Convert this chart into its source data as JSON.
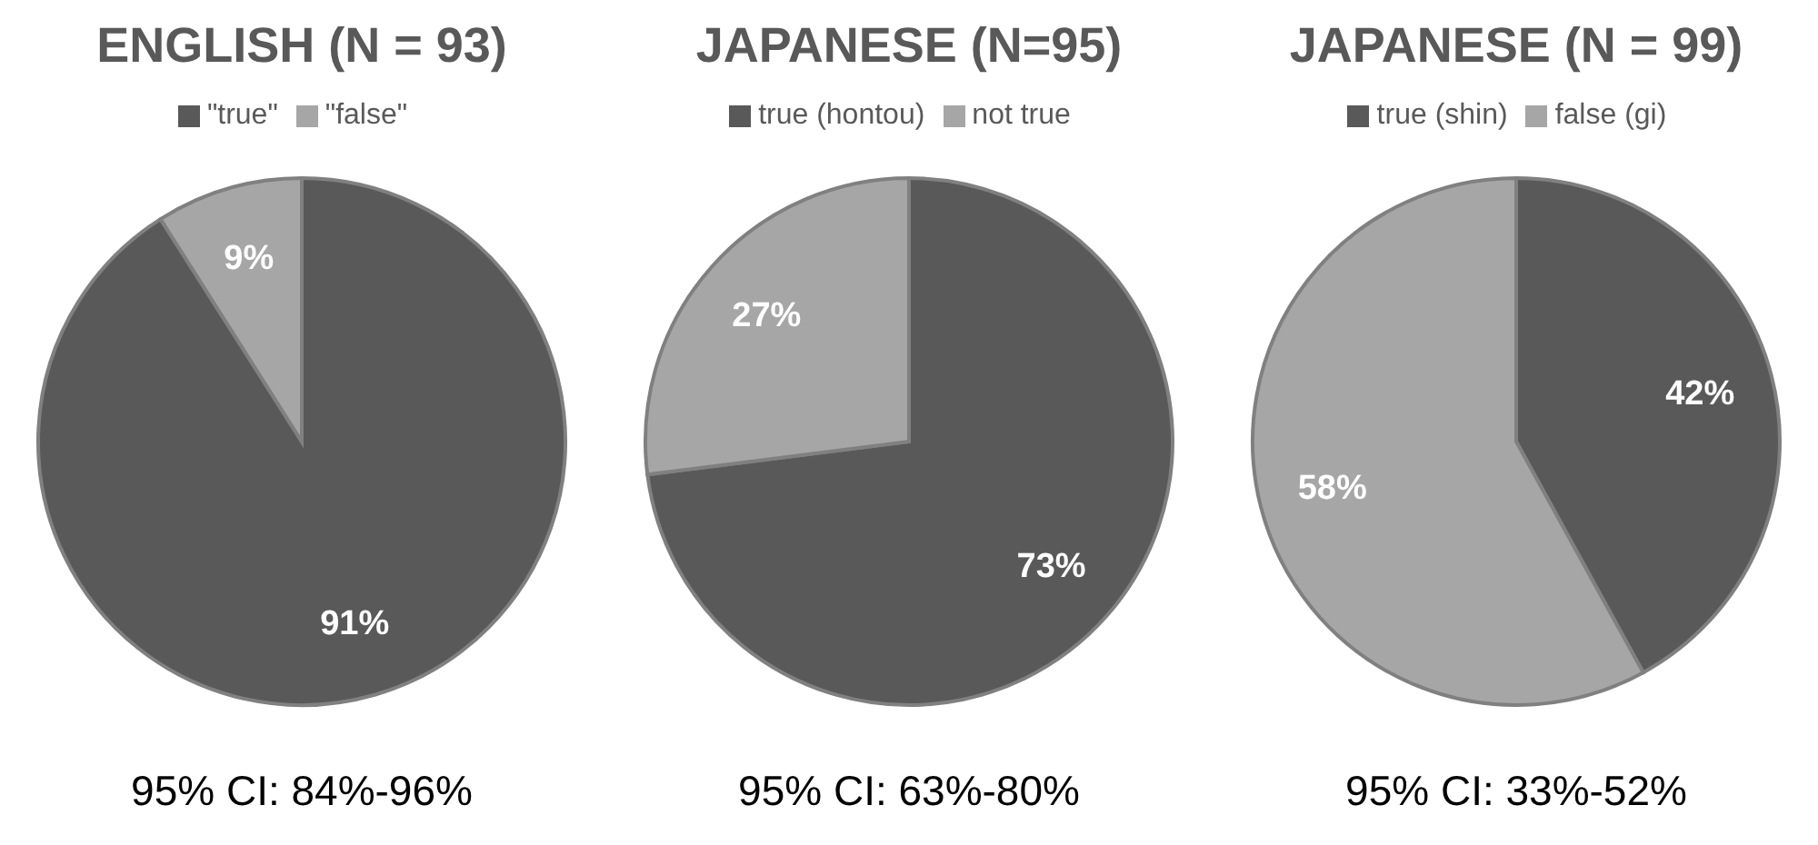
{
  "chart_data": [
    {
      "type": "pie",
      "title": "ENGLISH (N = 93)",
      "categories": [
        "\"true\"",
        "\"false\""
      ],
      "values": [
        91,
        9
      ],
      "colors": [
        "#595959",
        "#a6a6a6"
      ],
      "value_labels": [
        "91%",
        "9%"
      ],
      "legend": "top",
      "annotations": [
        "95% CI: 84%-96%"
      ]
    },
    {
      "type": "pie",
      "title": "JAPANESE (N=95)",
      "categories": [
        "true (hontou)",
        "not true"
      ],
      "values": [
        73,
        27
      ],
      "colors": [
        "#595959",
        "#a6a6a6"
      ],
      "value_labels": [
        "73%",
        "27%"
      ],
      "legend": "top",
      "annotations": [
        "95% CI: 63%-80%"
      ]
    },
    {
      "type": "pie",
      "title": "JAPANESE (N = 99)",
      "categories": [
        "true (shin)",
        "false (gi)"
      ],
      "values": [
        42,
        58
      ],
      "colors": [
        "#595959",
        "#a6a6a6"
      ],
      "value_labels": [
        "42%",
        "58%"
      ],
      "legend": "top",
      "annotations": [
        "95% CI: 33%-52%"
      ]
    }
  ]
}
